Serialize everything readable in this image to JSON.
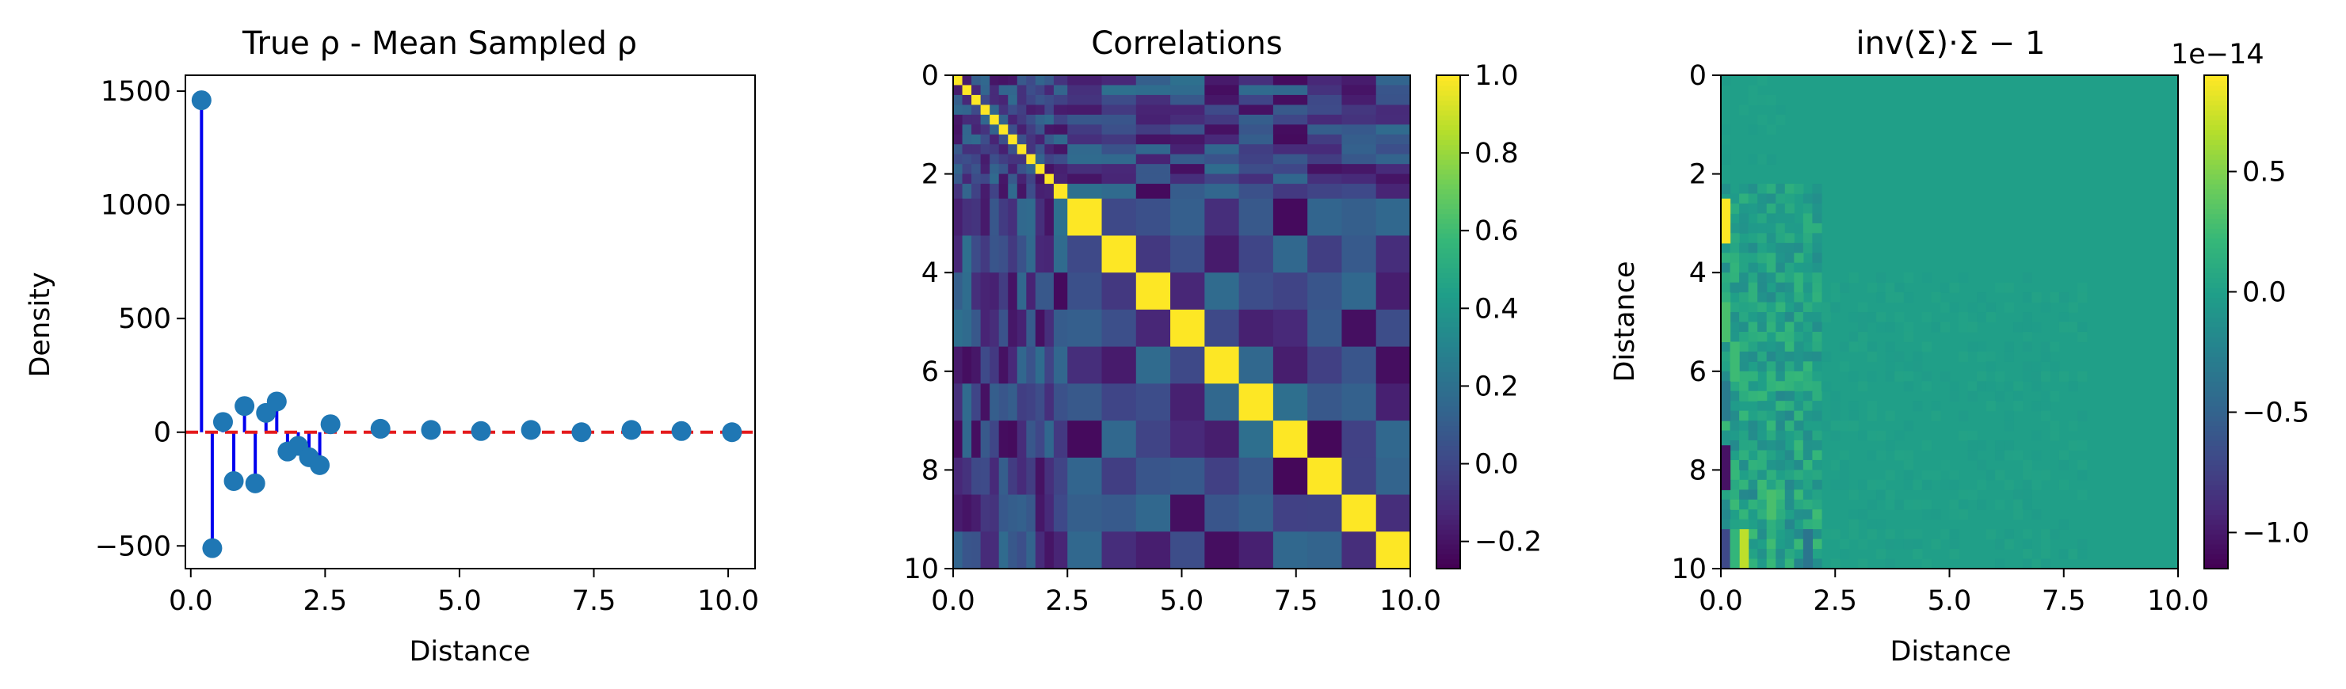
{
  "panels": [
    {
      "title": "True ρ - Mean Sampled ρ",
      "xlabel": "Distance",
      "ylabel": "Density",
      "xticks": [
        "0.0",
        "2.5",
        "5.0",
        "7.5",
        "10.0"
      ],
      "yticks": [
        "−500",
        "0",
        "500",
        "1000",
        "1500"
      ]
    },
    {
      "title": "Correlations",
      "xticks": [
        "0.0",
        "2.5",
        "5.0",
        "7.5",
        "10.0"
      ],
      "yticks": [
        "0",
        "2",
        "4",
        "6",
        "8",
        "10"
      ],
      "colorbar_ticks": [
        "−0.2",
        "0.0",
        "0.2",
        "0.4",
        "0.6",
        "0.8",
        "1.0"
      ]
    },
    {
      "title": "inv(Σ)·Σ − 1",
      "xlabel": "Distance",
      "ylabel": "Distance",
      "xticks": [
        "0.0",
        "2.5",
        "5.0",
        "7.5",
        "10.0"
      ],
      "yticks": [
        "0",
        "2",
        "4",
        "6",
        "8",
        "10"
      ],
      "colorbar_ticks": [
        "−1.0",
        "−0.5",
        "0.0",
        "0.5"
      ],
      "colorbar_offset": "1e−14"
    }
  ],
  "chart_data": [
    {
      "type": "stem",
      "title": "True ρ - Mean Sampled ρ",
      "xlabel": "Distance",
      "ylabel": "Density",
      "xlim": [
        -0.1,
        10.5
      ],
      "ylim": [
        -600,
        1570
      ],
      "baseline": {
        "y": 0,
        "style": "dashed",
        "color": "#e41a1c"
      },
      "stem_color": "#0000ee",
      "marker_color": "#1f77b4",
      "x": [
        0.2,
        0.4,
        0.6,
        0.8,
        1.0,
        1.2,
        1.4,
        1.6,
        1.8,
        2.0,
        2.2,
        2.4,
        2.6,
        3.53,
        4.47,
        5.4,
        6.33,
        7.27,
        8.2,
        9.13,
        10.07
      ],
      "y": [
        1460,
        -510,
        45,
        -215,
        115,
        -225,
        85,
        135,
        -85,
        -60,
        -110,
        -145,
        35,
        15,
        10,
        5,
        10,
        0,
        10,
        5,
        0
      ]
    },
    {
      "type": "heatmap",
      "title": "Correlations",
      "extent": [
        0,
        10,
        0,
        10
      ],
      "clim": [
        -0.27,
        1.0
      ],
      "colormap": "viridis",
      "notes": "22x22 correlation matrix on non-uniform bins (12 fine bins 0-2.5, 10 coarse bins 2.5-10); unit diagonal",
      "edges": [
        0,
        0.2,
        0.4,
        0.6,
        0.8,
        1.0,
        1.2,
        1.4,
        1.6,
        1.8,
        2.0,
        2.2,
        2.5,
        3.25,
        4.0,
        4.75,
        5.5,
        6.25,
        7.0,
        7.75,
        8.5,
        9.25,
        10.0
      ]
    },
    {
      "type": "heatmap",
      "title": "inv(Σ)·Σ − 1",
      "xlabel": "Distance",
      "ylabel": "Distance",
      "extent": [
        0,
        10,
        0,
        10
      ],
      "clim": [
        -1.15,
        0.9
      ],
      "scale_factor": "1e-14",
      "colormap": "viridis",
      "notes": "near-zero residual matrix; mostly ~0 with small deviations in the first columns"
    }
  ]
}
